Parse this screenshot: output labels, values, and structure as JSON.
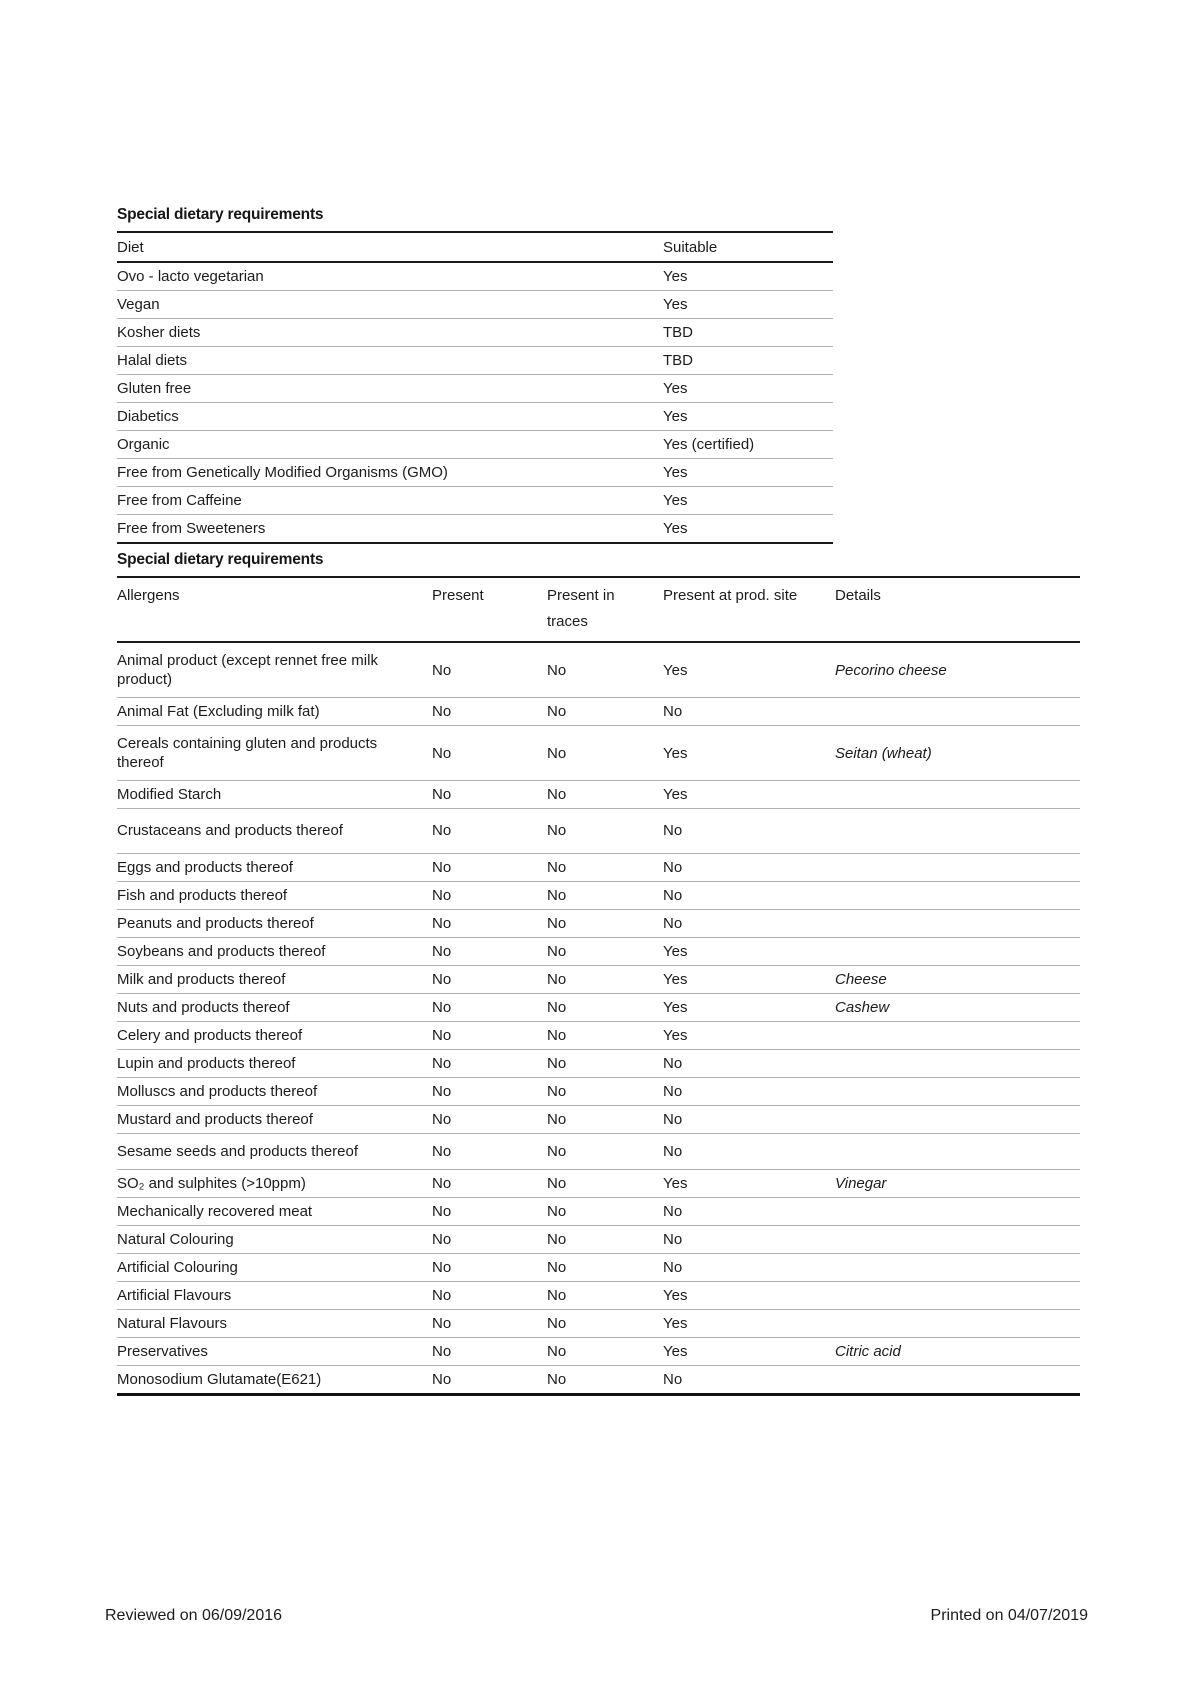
{
  "diet_table": {
    "title": "Special dietary requirements",
    "headers": [
      "Diet",
      "Suitable"
    ],
    "rows": [
      {
        "diet": "Ovo - lacto vegetarian",
        "suitable": "Yes"
      },
      {
        "diet": "Vegan",
        "suitable": "Yes"
      },
      {
        "diet": "Kosher diets",
        "suitable": "TBD"
      },
      {
        "diet": "Halal diets",
        "suitable": "TBD"
      },
      {
        "diet": "Gluten free",
        "suitable": "Yes"
      },
      {
        "diet": "Diabetics",
        "suitable": "Yes"
      },
      {
        "diet": "Organic",
        "suitable": "Yes (certified)"
      },
      {
        "diet": "Free from Genetically Modified Organisms (GMO)",
        "suitable": "Yes"
      },
      {
        "diet": "Free from Caffeine",
        "suitable": "Yes"
      },
      {
        "diet": "Free from Sweeteners",
        "suitable": "Yes"
      }
    ]
  },
  "allergen_table": {
    "title": "Special dietary requirements",
    "headers": [
      "Allergens",
      "Present",
      "Present in traces",
      "Present at prod. site",
      "Details"
    ],
    "rows": [
      {
        "allergen": "Animal product (except rennet free milk product)",
        "present": "No",
        "traces": "No",
        "prod_site": "Yes",
        "details": "Pecorino cheese"
      },
      {
        "allergen": "Animal Fat (Excluding milk fat)",
        "present": "No",
        "traces": "No",
        "prod_site": "No",
        "details": ""
      },
      {
        "allergen": "Cereals containing gluten and products thereof",
        "present": "No",
        "traces": "No",
        "prod_site": "Yes",
        "details": "Seitan (wheat)"
      },
      {
        "allergen": "Modified Starch",
        "present": "No",
        "traces": "No",
        "prod_site": "Yes",
        "details": ""
      },
      {
        "allergen": "Crustaceans and products thereof",
        "present": "No",
        "traces": "No",
        "prod_site": "No",
        "details": ""
      },
      {
        "allergen": "Eggs and products thereof",
        "present": "No",
        "traces": "No",
        "prod_site": "No",
        "details": ""
      },
      {
        "allergen": "Fish and products thereof",
        "present": "No",
        "traces": "No",
        "prod_site": "No",
        "details": ""
      },
      {
        "allergen": "Peanuts and products thereof",
        "present": "No",
        "traces": "No",
        "prod_site": "No",
        "details": ""
      },
      {
        "allergen": "Soybeans and products thereof",
        "present": "No",
        "traces": "No",
        "prod_site": "Yes",
        "details": ""
      },
      {
        "allergen": "Milk and products thereof",
        "present": "No",
        "traces": "No",
        "prod_site": "Yes",
        "details": "Cheese"
      },
      {
        "allergen": "Nuts and products thereof",
        "present": "No",
        "traces": "No",
        "prod_site": "Yes",
        "details": "Cashew"
      },
      {
        "allergen": "Celery and products thereof",
        "present": "No",
        "traces": "No",
        "prod_site": "Yes",
        "details": ""
      },
      {
        "allergen": "Lupin and products thereof",
        "present": "No",
        "traces": "No",
        "prod_site": "No",
        "details": ""
      },
      {
        "allergen": "Molluscs and products thereof",
        "present": "No",
        "traces": "No",
        "prod_site": "No",
        "details": ""
      },
      {
        "allergen": "Mustard and products thereof",
        "present": "No",
        "traces": "No",
        "prod_site": "No",
        "details": ""
      },
      {
        "allergen": "Sesame seeds and products thereof",
        "present": "No",
        "traces": "No",
        "prod_site": "No",
        "details": ""
      },
      {
        "allergen": "SO₂ and sulphites (>10ppm)",
        "present": "No",
        "traces": "No",
        "prod_site": "Yes",
        "details": "Vinegar"
      },
      {
        "allergen": "Mechanically recovered meat",
        "present": "No",
        "traces": "No",
        "prod_site": "No",
        "details": ""
      },
      {
        "allergen": "Natural Colouring",
        "present": "No",
        "traces": "No",
        "prod_site": "No",
        "details": ""
      },
      {
        "allergen": "Artificial Colouring",
        "present": "No",
        "traces": "No",
        "prod_site": "No",
        "details": ""
      },
      {
        "allergen": "Artificial Flavours",
        "present": "No",
        "traces": "No",
        "prod_site": "Yes",
        "details": ""
      },
      {
        "allergen": "Natural Flavours",
        "present": "No",
        "traces": "No",
        "prod_site": "Yes",
        "details": ""
      },
      {
        "allergen": "Preservatives",
        "present": "No",
        "traces": "No",
        "prod_site": "Yes",
        "details": "Citric acid"
      },
      {
        "allergen": "Monosodium Glutamate(E621)",
        "present": "No",
        "traces": "No",
        "prod_site": "No",
        "details": ""
      }
    ]
  },
  "footer": {
    "reviewed": "Reviewed on 06/09/2016",
    "printed": "Printed on 04/07/2019"
  }
}
